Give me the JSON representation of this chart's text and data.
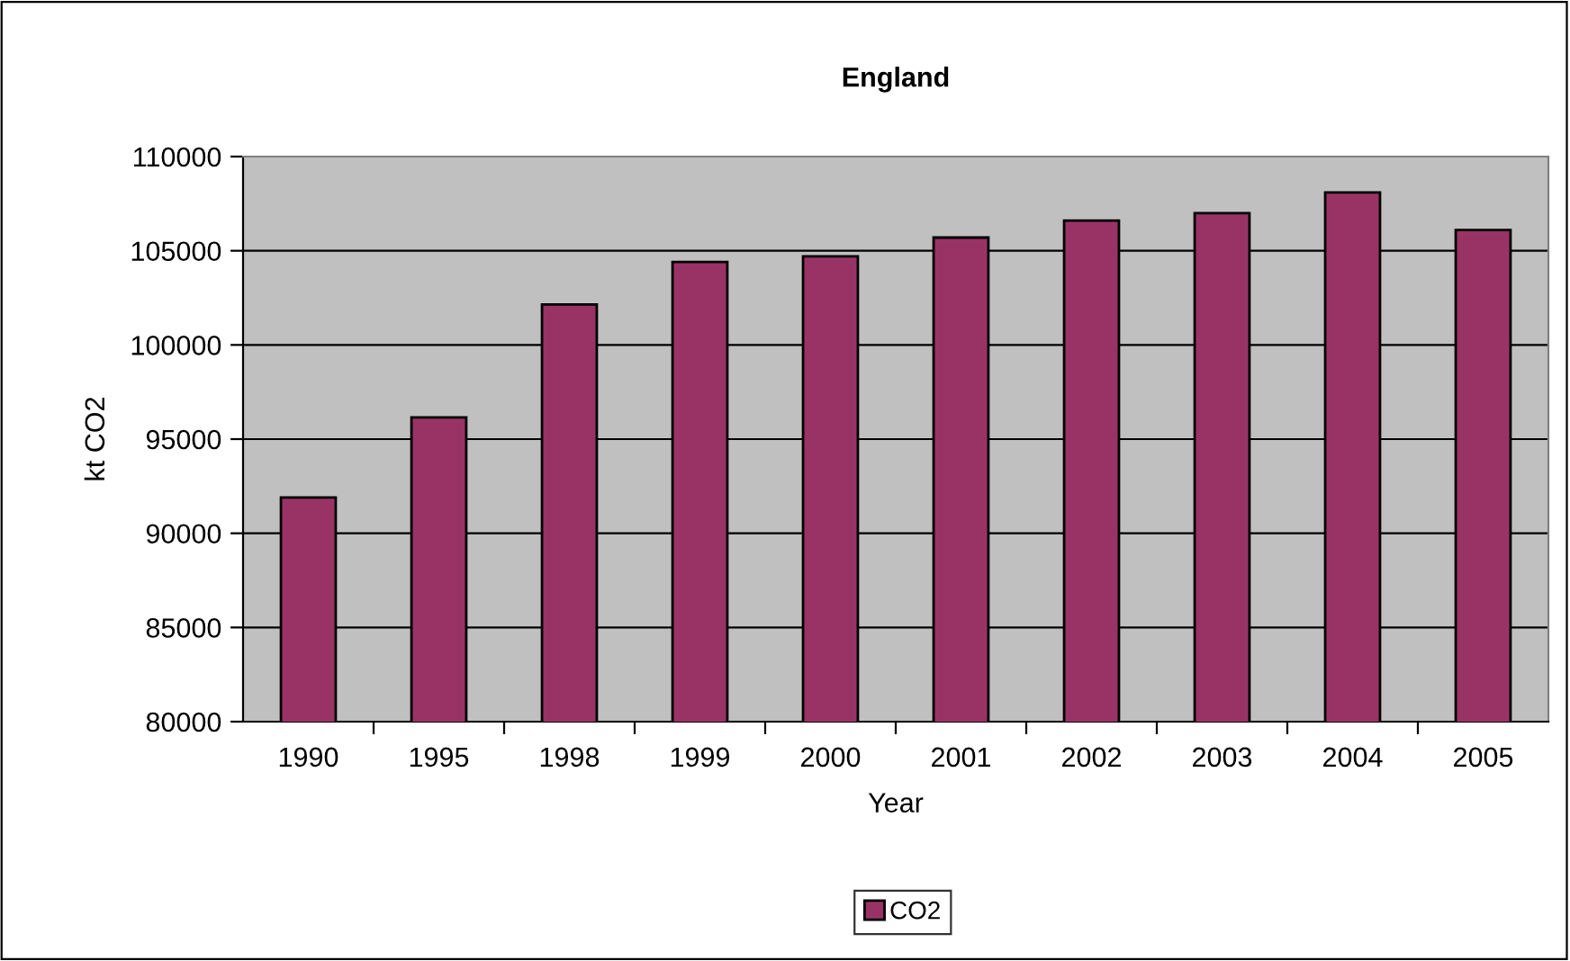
{
  "chart_data": {
    "type": "bar",
    "title": "England",
    "xlabel": "Year",
    "ylabel": "kt CO2",
    "categories": [
      "1990",
      "1995",
      "1998",
      "1999",
      "2000",
      "2001",
      "2002",
      "2003",
      "2004",
      "2005"
    ],
    "series": [
      {
        "name": "CO2",
        "color": "#993366",
        "values": [
          91900,
          96150,
          102150,
          104400,
          104700,
          105700,
          106600,
          107000,
          108100,
          106100
        ]
      }
    ],
    "ylim": [
      80000,
      110000
    ],
    "yticks": [
      80000,
      85000,
      90000,
      95000,
      100000,
      105000,
      110000
    ],
    "grid": "y",
    "legend": "bottom"
  }
}
